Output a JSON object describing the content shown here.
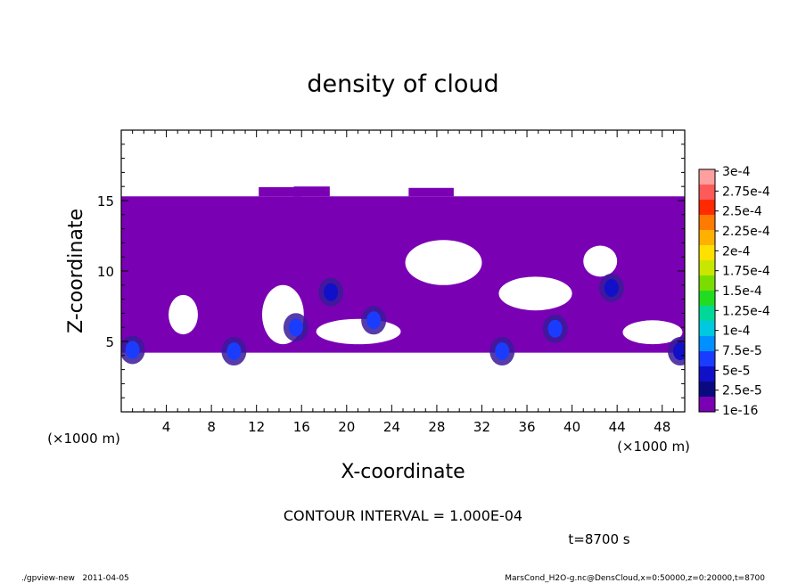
{
  "chart_data": {
    "type": "heatmap",
    "title": "density of cloud",
    "xlabel": "X-coordinate",
    "ylabel": "Z-coordinate",
    "x_unit": "(×1000 m)",
    "z_unit": "(×1000 m)",
    "xlim": [
      0,
      50
    ],
    "ylim": [
      0,
      20
    ],
    "xticks": [
      "4",
      "8",
      "12",
      "16",
      "20",
      "24",
      "28",
      "32",
      "36",
      "40",
      "44",
      "48"
    ],
    "yticks": [
      "5",
      "10",
      "15"
    ],
    "contour_interval": "CONTOUR INTERVAL = 1.000E-04",
    "time": "t=8700 s",
    "colorbar": {
      "labels": [
        "3e-4",
        "2.75e-4",
        "2.5e-4",
        "2.25e-4",
        "2e-4",
        "1.75e-4",
        "1.5e-4",
        "1.25e-4",
        "1e-4",
        "7.5e-5",
        "5e-5",
        "2.5e-5",
        "1e-16"
      ],
      "colors": [
        "#ff9f9f",
        "#ff5a5a",
        "#ff2a00",
        "#ff7a00",
        "#ffb000",
        "#ffe000",
        "#c8e600",
        "#7adc00",
        "#22dc22",
        "#00d89a",
        "#00c8e0",
        "#0090ff",
        "#1a3cff",
        "#1010c8",
        "#0a0a80",
        "#7a00b4"
      ]
    },
    "fields": {
      "background_level": "1e-16",
      "cloud_band_z": [
        4.2,
        15.3
      ],
      "clear_regions": [
        {
          "x": [
            4.2,
            6.8
          ],
          "z": [
            5.5,
            8.3
          ]
        },
        {
          "x": [
            12.5,
            16.2
          ],
          "z": [
            4.8,
            9.0
          ]
        },
        {
          "x": [
            17.3,
            24.8
          ],
          "z": [
            4.8,
            6.6
          ]
        },
        {
          "x": [
            25.2,
            32.0
          ],
          "z": [
            9.0,
            12.2
          ]
        },
        {
          "x": [
            33.5,
            40.0
          ],
          "z": [
            7.2,
            9.6
          ]
        },
        {
          "x": [
            41.0,
            44.0
          ],
          "z": [
            9.6,
            11.8
          ]
        },
        {
          "x": [
            44.5,
            49.8
          ],
          "z": [
            4.8,
            6.5
          ]
        }
      ],
      "dense_cores": [
        {
          "x": 1.0,
          "z": 4.4,
          "level": "5e-5"
        },
        {
          "x": 10.0,
          "z": 4.3,
          "level": "5e-5"
        },
        {
          "x": 15.5,
          "z": 6.0,
          "level": "5e-5"
        },
        {
          "x": 18.6,
          "z": 8.5,
          "level": "2.5e-5"
        },
        {
          "x": 22.4,
          "z": 6.5,
          "level": "5e-5"
        },
        {
          "x": 33.8,
          "z": 4.3,
          "level": "5e-5"
        },
        {
          "x": 38.5,
          "z": 5.9,
          "level": "5e-5"
        },
        {
          "x": 43.5,
          "z": 8.8,
          "level": "2.5e-5"
        },
        {
          "x": 49.6,
          "z": 4.3,
          "level": "2.5e-5"
        }
      ]
    }
  },
  "footer": {
    "left": "./gpview-new   2011-04-05",
    "right": "MarsCond_H2O-g.nc@DensCloud,x=0:50000,z=0:20000,t=8700"
  }
}
